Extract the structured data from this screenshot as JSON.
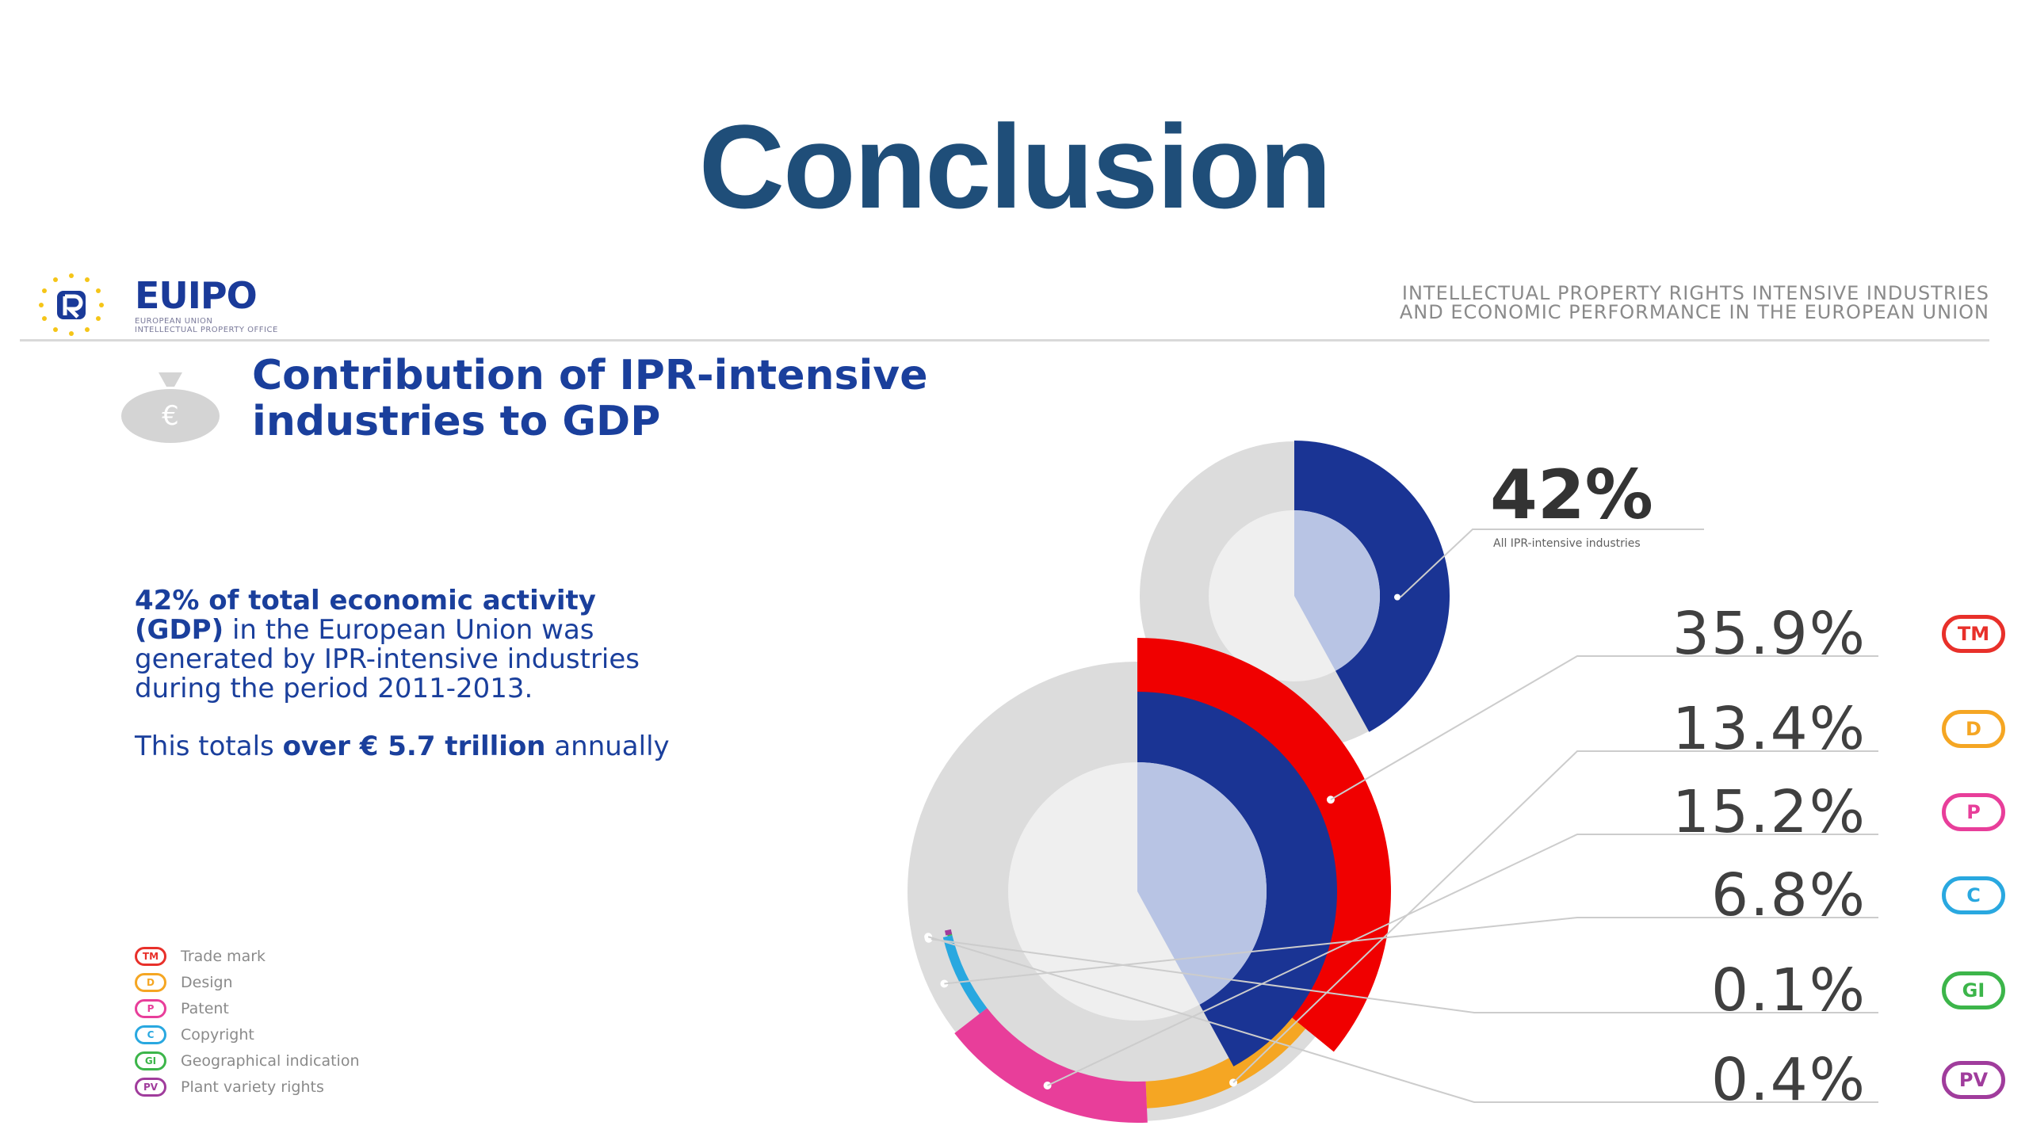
{
  "slide": {
    "title": "Conclusion"
  },
  "header": {
    "logo_text": "EUIPO",
    "logo_sub_1": "EUROPEAN UNION",
    "logo_sub_2": "INTELLECTUAL PROPERTY OFFICE",
    "report_line_1": "INTELLECTUAL PROPERTY RIGHTS INTENSIVE INDUSTRIES",
    "report_line_2": "AND ECONOMIC PERFORMANCE IN THE EUROPEAN UNION"
  },
  "section": {
    "title_line_1": "Contribution of IPR-intensive",
    "title_line_2": "industries to GDP"
  },
  "body": {
    "p1_bold": "42% of total economic activity (GDP)",
    "p1_rest": " in the European Union was generated by IPR-intensive industries during the period 2011-2013.",
    "p2_start": "This totals ",
    "p2_bold": "over € 5.7 trillion",
    "p2_end": " annually"
  },
  "legend": [
    {
      "abbr": "TM",
      "label": "Trade mark",
      "color": "#e8302a"
    },
    {
      "abbr": "D",
      "label": "Design",
      "color": "#f5a623"
    },
    {
      "abbr": "P",
      "label": "Patent",
      "color": "#e83e9a"
    },
    {
      "abbr": "C",
      "label": "Copyright",
      "color": "#29a8e0"
    },
    {
      "abbr": "GI",
      "label": "Geographical indication",
      "color": "#3cb54a"
    },
    {
      "abbr": "PV",
      "label": "Plant variety rights",
      "color": "#a03c9c"
    }
  ],
  "chart_data": {
    "type": "pie",
    "total": {
      "value": 42,
      "label": "42%",
      "caption": "All IPR-intensive industries",
      "color": "#1a3494"
    },
    "series": [
      {
        "abbr": "TM",
        "value": 35.9,
        "label": "35.9%",
        "color": "#f00000"
      },
      {
        "abbr": "D",
        "value": 13.4,
        "label": "13.4%",
        "color": "#f5a623"
      },
      {
        "abbr": "P",
        "value": 15.2,
        "label": "15.2%",
        "color": "#e83e9a"
      },
      {
        "abbr": "C",
        "value": 6.8,
        "label": "6.8%",
        "color": "#29a8e0"
      },
      {
        "abbr": "GI",
        "value": 0.1,
        "label": "0.1%",
        "color": "#3cb54a"
      },
      {
        "abbr": "PV",
        "value": 0.4,
        "label": "0.4%",
        "color": "#a03c9c"
      }
    ],
    "badge_colors": {
      "TM": "#e8302a",
      "D": "#f5a623",
      "P": "#e83e9a",
      "C": "#29a8e0",
      "GI": "#3cb54a",
      "PV": "#a03c9c"
    }
  }
}
